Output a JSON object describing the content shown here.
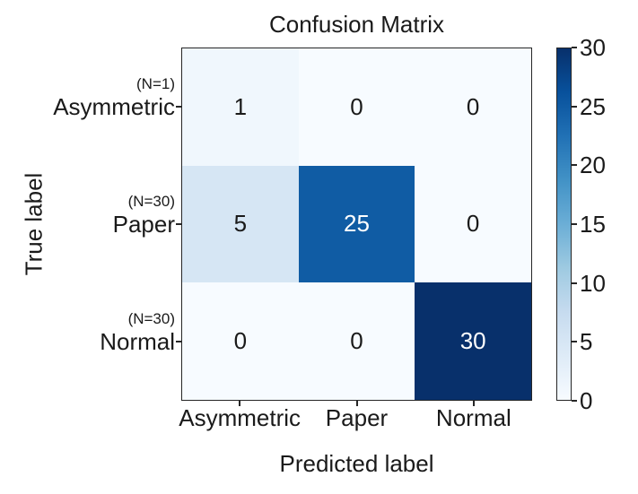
{
  "chart_data": {
    "type": "heatmap",
    "title": "Confusion Matrix",
    "xlabel": "Predicted label",
    "ylabel": "True label",
    "x_categories": [
      "Asymmetric",
      "Paper",
      "Normal"
    ],
    "rows": [
      {
        "n_label": "(N=1)",
        "label": "Asymmetric"
      },
      {
        "n_label": "(N=30)",
        "label": "Paper"
      },
      {
        "n_label": "(N=30)",
        "label": "Normal"
      }
    ],
    "matrix": [
      [
        1,
        0,
        0
      ],
      [
        5,
        25,
        0
      ],
      [
        0,
        0,
        30
      ]
    ],
    "vmin": 0,
    "vmax": 30,
    "colormap": "Blues",
    "colormap_anchors": [
      "#f7fbff",
      "#deebf7",
      "#c6dbef",
      "#9ecae1",
      "#6baed6",
      "#4292c6",
      "#2171b5",
      "#08519c",
      "#08306b"
    ],
    "colorbar_ticks": [
      0,
      5,
      10,
      15,
      20,
      25,
      30
    ],
    "colorbar_position": "right",
    "grid": false,
    "colors": {
      "cell_text_light_bg": "#1a1a1a",
      "cell_text_dark_bg": "#ffffff",
      "spine": "#262626",
      "figure_background": "#ffffff"
    }
  }
}
